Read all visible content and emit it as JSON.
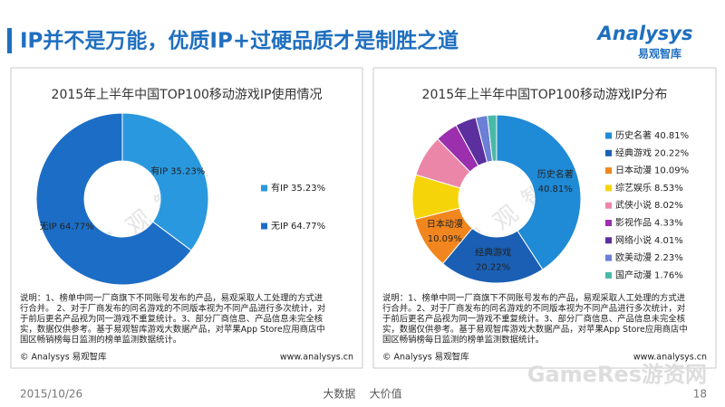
{
  "header": {
    "title": "IP并不是万能，优质IP+过硬品质才是制胜之道",
    "logo": "Analysys",
    "logo_sub": "易观智库"
  },
  "chart_data": [
    {
      "type": "donut",
      "title": "2015年上半年中国TOP100移动游戏IP使用情况",
      "categories": [
        "有IP",
        "无IP"
      ],
      "values": [
        35.23,
        64.77
      ],
      "value_labels": [
        "35.23%",
        "64.77%"
      ],
      "colors": [
        "#2a98de",
        "#1c6dc5"
      ],
      "legend": "right"
    },
    {
      "type": "donut",
      "title": "2015年上半年中国TOP100移动游戏IP分布",
      "categories": [
        "历史名著",
        "经典游戏",
        "日本动漫",
        "综艺娱乐",
        "武侠小说",
        "影视作品",
        "网络小说",
        "欧美动漫",
        "国产动漫"
      ],
      "values": [
        40.81,
        20.22,
        10.09,
        8.53,
        8.02,
        4.33,
        4.01,
        2.23,
        1.76
      ],
      "value_labels": [
        "40.81%",
        "20.22%",
        "10.09%",
        "8.53%",
        "8.02%",
        "4.33%",
        "4.01%",
        "2.23%",
        "1.76%"
      ],
      "colors": [
        "#1f8ad6",
        "#1a5fb4",
        "#f2861e",
        "#f5d50a",
        "#ec86a9",
        "#9b2fae",
        "#5b2f9e",
        "#6b7fd6",
        "#49b9a7"
      ],
      "legend": "right"
    }
  ],
  "notes": [
    [
      "说明：1、榜单中同一厂商旗下不同账号发布的产品，易观采取人工处理的方式进",
      "行合并。 2、对于厂商发布的同名游戏的不同版本视为不同产品进行多次统计，对",
      "于前后更名产品视为同一游戏不重复统计。3、部分厂商信息、产品信息未完全核",
      "实，数据仅供参考。基于易观智库游戏大数据产品，对苹果App Store应用商店中",
      "国区畅销榜每日监测的榜单监测数据统计。"
    ],
    [
      "说明：1、榜单中同一厂商旗下不同账号发布的产品，易观采取人工处理的方式进",
      "行合并。2、对于厂商发布的同名游戏的不同版本视为不同产品进行多次统计，对",
      "于前后更名产品视为同一游戏不重复统计。3、部分厂商信息、产品信息未完全核",
      "实，数据仅供参考。基于易观智库游戏大数据产品，对苹果App Store应用商店中",
      "国区畅销榜每日监测的榜单监测数据统计。"
    ]
  ],
  "sources": [
    [
      "© Analysys 易观智库",
      "www.analysys.cn"
    ],
    [
      "© Analysys 易观智库",
      "www.analysys.cn"
    ]
  ],
  "watermarks": [
    "易观智库",
    "GameRes游资网"
  ],
  "footer": {
    "date": "2015/10/26",
    "center": "大数据    大价值",
    "page": "18"
  }
}
